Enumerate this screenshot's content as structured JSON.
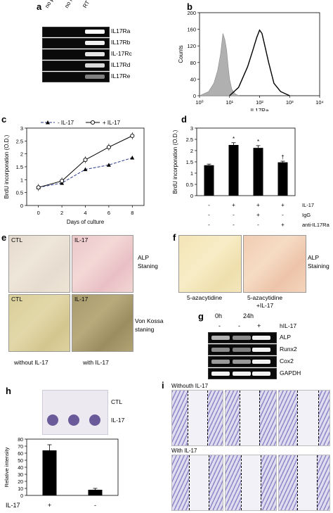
{
  "panels": {
    "a": {
      "label": "a",
      "columns": [
        "no primer",
        "no RT",
        "RT"
      ],
      "genes": [
        "IL17Ra",
        "IL17Rb",
        "IL-17Rc",
        "IL17Rd",
        "IL17Re"
      ],
      "band_intensity": [
        1.0,
        0.95,
        0.9,
        0.85,
        0.5
      ]
    },
    "b": {
      "label": "b",
      "chart_data": {
        "type": "area",
        "xlabel": "IL17Ra",
        "ylabel": "Counts",
        "x_scale": "log",
        "xlim": [
          1,
          10000
        ],
        "ylim": [
          0,
          200
        ],
        "xticks": [
          "10⁰",
          "10¹",
          "10²",
          "10³",
          "10⁴"
        ],
        "yticks": [
          0,
          40,
          80,
          120,
          160,
          200
        ],
        "series": [
          {
            "color": "#b0b0b0",
            "x": [
              1,
              2,
              3,
              4,
              5,
              6,
              7,
              8,
              9,
              10,
              12,
              15,
              20
            ],
            "y": [
              0,
              10,
              30,
              60,
              100,
              150,
              135,
              110,
              70,
              40,
              15,
              5,
              0
            ]
          },
          {
            "color": "#000000",
            "x": [
              10,
              20,
              40,
              60,
              80,
              100,
              120,
              150,
              200,
              300,
              500,
              1000
            ],
            "y": [
              0,
              20,
              70,
              110,
              140,
              158,
              150,
              120,
              80,
              30,
              10,
              0
            ]
          }
        ]
      }
    },
    "c": {
      "label": "c",
      "chart_data": {
        "type": "line",
        "xlabel": "Days of culture",
        "ylabel": "BrdU incorporation (O.D.)",
        "x": [
          0,
          2,
          4,
          6,
          8
        ],
        "xlim": [
          -1,
          9
        ],
        "ylim": [
          0,
          3
        ],
        "yticks": [
          0,
          0.5,
          1,
          1.5,
          2,
          2.5,
          3
        ],
        "xticks": [
          0,
          2,
          4,
          6,
          8
        ],
        "series": [
          {
            "name": "- IL-17",
            "values": [
              0.7,
              0.87,
              1.4,
              1.57,
              1.85
            ],
            "color": "#000",
            "dashed": true,
            "marker": "triangle"
          },
          {
            "name": "+ IL-17",
            "values": [
              0.7,
              0.95,
              1.77,
              2.26,
              2.7
            ],
            "color": "#000",
            "dashed": false,
            "marker": "circle"
          }
        ],
        "legend": "top"
      }
    },
    "d": {
      "label": "d",
      "chart_data": {
        "type": "bar",
        "ylabel": "BrdU incorporation (O.D.)",
        "ylim": [
          0,
          3
        ],
        "yticks": [
          0,
          0.5,
          1,
          1.5,
          2,
          2.5,
          3
        ],
        "values": [
          1.35,
          2.25,
          2.12,
          1.48
        ],
        "errors": [
          0.05,
          0.1,
          0.1,
          0.05
        ],
        "markers": [
          "",
          "*",
          "*",
          "†"
        ],
        "conditions": {
          "rows": [
            "IL-17",
            "IgG",
            "anti-IL17Ra"
          ],
          "signs": [
            [
              "-",
              "+",
              "+",
              "+"
            ],
            [
              "-",
              "-",
              "+",
              "-"
            ],
            [
              "-",
              "-",
              "-",
              "+"
            ]
          ]
        }
      }
    },
    "e": {
      "label": "e",
      "top_labels": [
        "CTL",
        "IL-17"
      ],
      "bottom_labels": [
        "CTL",
        "IL-17"
      ],
      "row1_caption": "ALP\nStaning",
      "row2_caption": "Von Kossa\nstaning",
      "col_captions": [
        "without IL-17",
        "with IL-17"
      ]
    },
    "f": {
      "label": "f",
      "caption": "ALP\nStaining",
      "col_captions": [
        "5-azacytidine",
        "5-azacytidine\n+IL-17"
      ]
    },
    "g": {
      "label": "g",
      "time_labels": [
        "0h",
        "24h"
      ],
      "treatment_label": "hIL-17",
      "treatment_signs": [
        "-",
        "-",
        "+"
      ],
      "genes": [
        "ALP",
        "Runx2",
        "Cox2",
        "GAPDH"
      ]
    },
    "h": {
      "label": "h",
      "blot_labels": [
        "CTL",
        "IL-17"
      ],
      "chart_data": {
        "type": "bar",
        "ylabel": "Relative intensity",
        "ylim": [
          0,
          80
        ],
        "yticks": [
          0,
          10,
          20,
          30,
          40,
          50,
          60,
          70,
          80
        ],
        "categories": [
          "+",
          "-"
        ],
        "values": [
          64,
          8
        ],
        "errors": [
          8,
          2
        ],
        "xrow_label": "IL-17"
      }
    },
    "i": {
      "label": "i",
      "row_labels": [
        "Withouth IL-17",
        "With IL-17"
      ]
    }
  }
}
